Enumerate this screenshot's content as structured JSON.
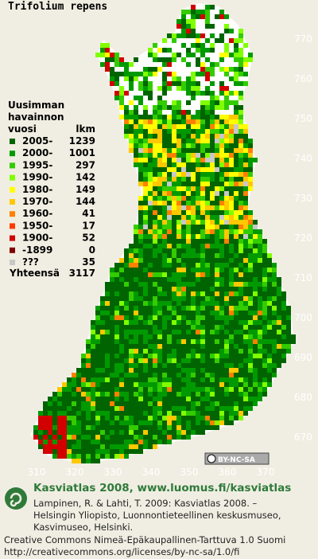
{
  "title": "Trifolium repens",
  "legend": {
    "heading": [
      "Uusimman",
      "havainnon",
      "vuosi"
    ],
    "count_heading": "lkm",
    "rows": [
      {
        "label": "2005-",
        "count": 1239,
        "color": "#006400"
      },
      {
        "label": "2000-",
        "count": 1001,
        "color": "#009a00"
      },
      {
        "label": "1995-",
        "count": 297,
        "color": "#33cc00"
      },
      {
        "label": "1990-",
        "count": 142,
        "color": "#80ff00"
      },
      {
        "label": "1980-",
        "count": 149,
        "color": "#ffff00"
      },
      {
        "label": "1970-",
        "count": 144,
        "color": "#ffc800"
      },
      {
        "label": "1960-",
        "count": 41,
        "color": "#ff8000"
      },
      {
        "label": "1950-",
        "count": 17,
        "color": "#ff3c00"
      },
      {
        "label": "1900-",
        "count": 52,
        "color": "#d20000"
      },
      {
        "label": "-1899",
        "count": 0,
        "color": "#800000"
      },
      {
        "label": "???",
        "count": 35,
        "color": "#c8c8c8"
      }
    ],
    "total_label": "Yhteensä",
    "total": 3117
  },
  "y_labels": [
    770,
    760,
    750,
    740,
    730,
    720,
    710,
    700,
    690,
    680,
    670
  ],
  "x_labels": [
    310,
    320,
    330,
    340,
    350,
    360,
    370
  ],
  "license_badge": "BY-NC-SA",
  "footer": {
    "site": "Kasviatlas 2008, www.luomus.fi/kasviatlas",
    "citation": [
      "Lampinen, R. & Lahti, T. 2009: Kasviatlas 2008. –",
      "Helsingin Yliopisto, Luonnontieteellinen keskusmuseo,",
      "Kasvimuseo, Helsinki."
    ],
    "license": [
      "Creative Commons Nimeä-Epäkaupallinen-Tarttuva 1.0 Suomi",
      "http://creativecommons.org/licenses/by-nc-sa/1.0/fi"
    ]
  }
}
